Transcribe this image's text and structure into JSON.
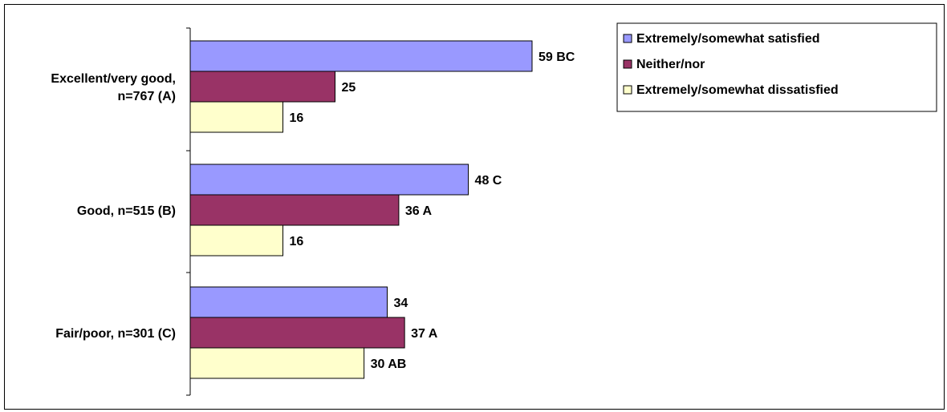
{
  "chart_data": {
    "type": "bar",
    "orientation": "horizontal",
    "categories": [
      [
        "Excellent/very good,",
        "n=767 (A)"
      ],
      [
        "Good, n=515 (B)"
      ],
      [
        "Fair/poor, n=301 (C)"
      ]
    ],
    "series": [
      {
        "name": "Extremely/somewhat satisfied",
        "values": [
          59,
          48,
          34
        ],
        "labels": [
          "59 BC",
          "48 C",
          "34"
        ],
        "color": "#9999ff"
      },
      {
        "name": "Neither/nor",
        "values": [
          25,
          36,
          37
        ],
        "labels": [
          "25",
          "36 A",
          "37 A"
        ],
        "color": "#993366"
      },
      {
        "name": "Extremely/somewhat dissatisfied",
        "values": [
          16,
          16,
          30
        ],
        "labels": [
          "16",
          "16",
          "30 AB"
        ],
        "color": "#ffffcc"
      }
    ],
    "xlim": [
      0,
      100
    ],
    "grid": false,
    "legend_position": "top-right"
  }
}
